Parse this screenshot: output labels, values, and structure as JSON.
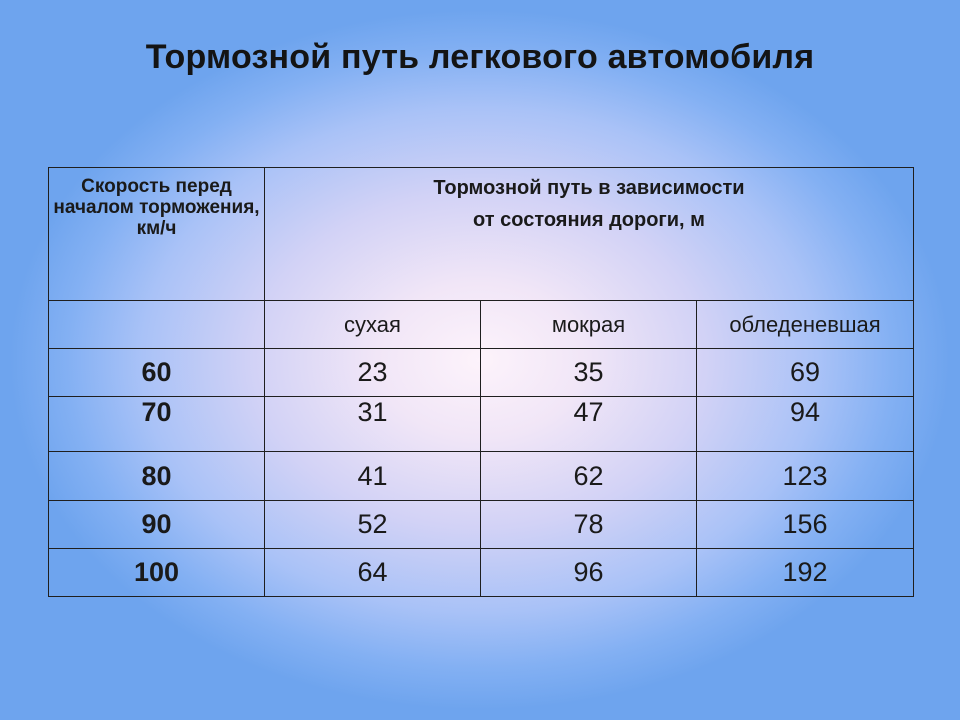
{
  "title": "Тормозной путь легкового автомобиля",
  "table": {
    "speed_header": "Скорость перед началом торможения, км/ч",
    "brake_header_line1": "Тормозной путь в зависимости",
    "brake_header_line2": "от состояния дороги, м",
    "conditions": [
      "сухая",
      "мокрая",
      "обледеневшая"
    ],
    "rows": [
      {
        "speed": "60",
        "dry": "23",
        "wet": "35",
        "icy": "69"
      },
      {
        "speed": "70",
        "dry": "31",
        "wet": "47",
        "icy": "94"
      },
      {
        "speed": "80",
        "dry": "41",
        "wet": "62",
        "icy": "123"
      },
      {
        "speed": "90",
        "dry": "52",
        "wet": "78",
        "icy": "156"
      },
      {
        "speed": "100",
        "dry": "64",
        "wet": "96",
        "icy": "192"
      }
    ]
  }
}
